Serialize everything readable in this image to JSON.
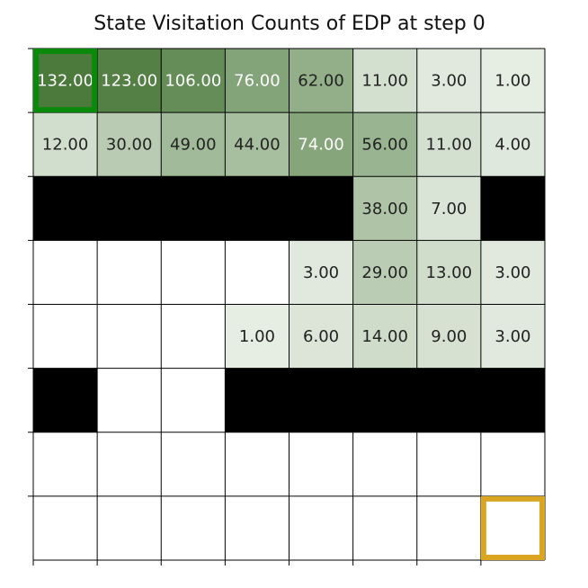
{
  "chart_data": {
    "type": "heatmap",
    "title": "State Visitation Counts of EDP at step 0",
    "xlabel": "",
    "ylabel": "",
    "rows": 8,
    "cols": 8,
    "values": [
      [
        132,
        123,
        106,
        76,
        62,
        11,
        3,
        1
      ],
      [
        12,
        30,
        49,
        44,
        74,
        56,
        11,
        4
      ],
      [
        null,
        null,
        null,
        null,
        null,
        38,
        7,
        null
      ],
      [
        0,
        0,
        0,
        0,
        3,
        29,
        13,
        3
      ],
      [
        0,
        0,
        0,
        1,
        6,
        14,
        9,
        3
      ],
      [
        null,
        0,
        0,
        null,
        null,
        null,
        null,
        null
      ],
      [
        0,
        0,
        0,
        0,
        0,
        0,
        0,
        0
      ],
      [
        0,
        0,
        0,
        0,
        0,
        0,
        0,
        0
      ]
    ],
    "labels": [
      [
        "132.00",
        "123.00",
        "106.00",
        "76.00",
        "62.00",
        "11.00",
        "3.00",
        "1.00"
      ],
      [
        "12.00",
        "30.00",
        "49.00",
        "44.00",
        "74.00",
        "56.00",
        "11.00",
        "4.00"
      ],
      [
        "",
        "",
        "",
        "",
        "",
        "38.00",
        "7.00",
        ""
      ],
      [
        "",
        "",
        "",
        "",
        "3.00",
        "29.00",
        "13.00",
        "3.00"
      ],
      [
        "",
        "",
        "",
        "1.00",
        "6.00",
        "14.00",
        "9.00",
        "3.00"
      ],
      [
        "",
        "",
        "",
        "",
        "",
        "",
        "",
        ""
      ],
      [
        "",
        "",
        "",
        "",
        "",
        "",
        "",
        ""
      ],
      [
        "",
        "",
        "",
        "",
        "",
        "",
        "",
        ""
      ]
    ],
    "walls": [
      [
        2,
        0
      ],
      [
        2,
        1
      ],
      [
        2,
        2
      ],
      [
        2,
        3
      ],
      [
        2,
        4
      ],
      [
        2,
        7
      ],
      [
        5,
        0
      ],
      [
        5,
        3
      ],
      [
        5,
        4
      ],
      [
        5,
        5
      ],
      [
        5,
        6
      ],
      [
        5,
        7
      ]
    ],
    "start_cell": [
      0,
      0
    ],
    "goal_cell": [
      7,
      7
    ],
    "colors": {
      "low": "#e9efe6",
      "high": "#4b7a3c",
      "wall": "#000000",
      "start_marker": "#0a8a0a",
      "goal_marker": "#daa520",
      "grid_line": "#000000",
      "light_text": "#ffffff",
      "dark_text": "#222222"
    },
    "grid": true,
    "legend": "none"
  }
}
